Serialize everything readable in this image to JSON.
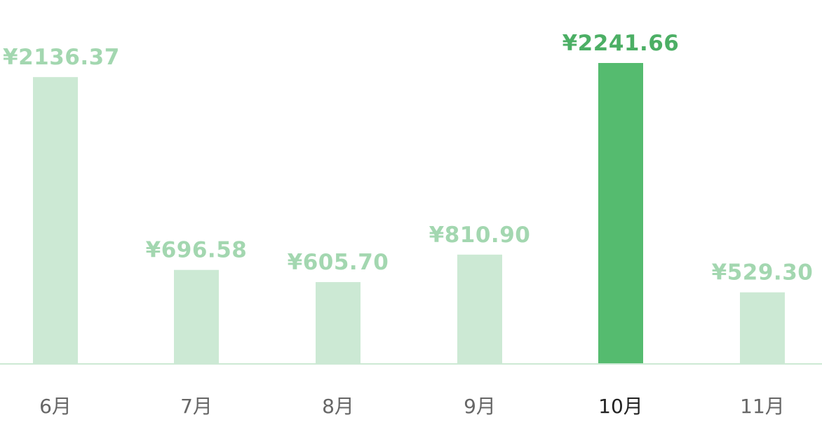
{
  "chart_data": {
    "type": "bar",
    "categories": [
      "6月",
      "7月",
      "8月",
      "9月",
      "10月",
      "11月"
    ],
    "values": [
      2136.37,
      696.58,
      605.7,
      810.9,
      2241.66,
      529.3
    ],
    "value_labels": [
      "¥2136.37",
      "¥696.58",
      "¥605.70",
      "¥810.90",
      "¥2241.66",
      "¥529.30"
    ],
    "highlighted_index": 4,
    "title": "",
    "xlabel": "",
    "ylabel": "",
    "ylim": [
      0,
      2241.66
    ],
    "grid": false,
    "legend": "none"
  },
  "colors": {
    "bar": "#cce9d4",
    "bar_highlight": "#55bb6f",
    "value_label": "#a3d7b0",
    "value_label_highlight": "#4caf65",
    "tick_label": "#666666",
    "tick_label_highlight": "#222222",
    "baseline": "#cce9d4",
    "background": "#ffffff"
  }
}
